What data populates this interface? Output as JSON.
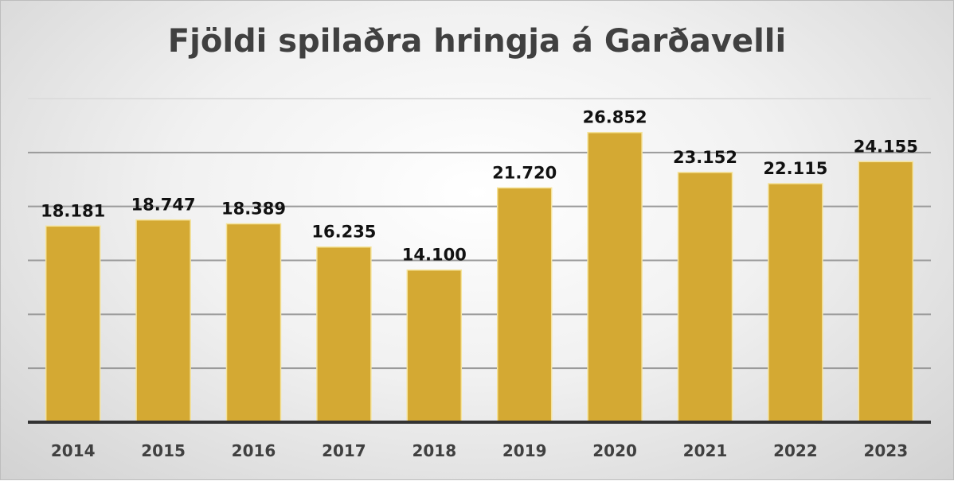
{
  "chart_data": {
    "type": "bar",
    "title": "Fjöldi spilaðra hringja á Garðavelli",
    "categories": [
      "2014",
      "2015",
      "2016",
      "2017",
      "2018",
      "2019",
      "2020",
      "2021",
      "2022",
      "2023"
    ],
    "values": [
      18181,
      18747,
      18389,
      16235,
      14100,
      21720,
      26852,
      23152,
      22115,
      24155
    ],
    "data_labels": [
      "18.181",
      "18.747",
      "18.389",
      "16.235",
      "14.100",
      "21.720",
      "26.852",
      "23.152",
      "22.115",
      "24.155"
    ],
    "xlabel": "",
    "ylabel": "",
    "ylim": [
      0,
      30000
    ],
    "ytick_step": 5000,
    "y_tick_labels_shown": false,
    "grid": true,
    "legend": "none",
    "colors": {
      "bar": "#D4A933",
      "bar_border": "#F5E39A",
      "title": "#404040",
      "label": "#111111",
      "axis_label": "#404040"
    }
  }
}
